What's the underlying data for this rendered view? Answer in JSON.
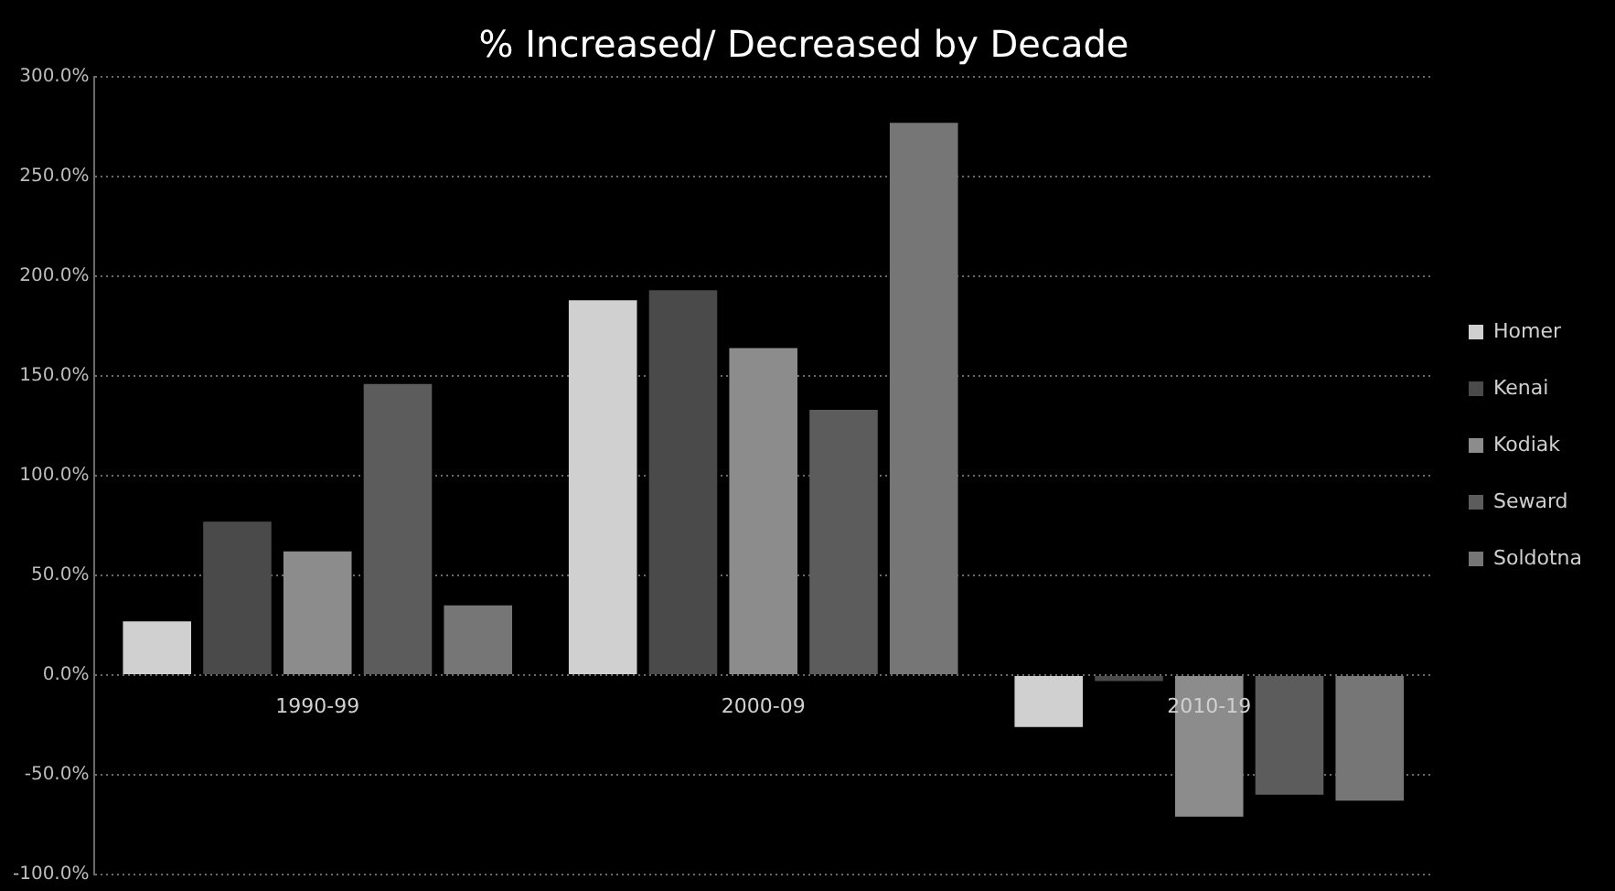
{
  "chart_data": {
    "type": "bar",
    "title": "% Increased/ Decreased by Decade",
    "categories": [
      "1990-99",
      "2000-09",
      "2010-19"
    ],
    "series": [
      {
        "name": "Homer",
        "color": "#d0d0d0",
        "values": [
          27,
          188,
          -26
        ]
      },
      {
        "name": "Kenai",
        "color": "#4a4a4a",
        "values": [
          77,
          193,
          -3
        ]
      },
      {
        "name": "Kodiak",
        "color": "#8c8c8c",
        "values": [
          62,
          164,
          -71
        ]
      },
      {
        "name": "Seward",
        "color": "#5c5c5c",
        "values": [
          146,
          133,
          -60
        ]
      },
      {
        "name": "Soldotna",
        "color": "#767676",
        "values": [
          35,
          277,
          -63
        ]
      }
    ],
    "ylim": [
      -100,
      300
    ],
    "yticks": [
      {
        "value": -100,
        "label": "-100.0%"
      },
      {
        "value": -50,
        "label": "-50.0%"
      },
      {
        "value": 0,
        "label": "0.0%"
      },
      {
        "value": 50,
        "label": "50.0%"
      },
      {
        "value": 100,
        "label": "100.0%"
      },
      {
        "value": 150,
        "label": "150.0%"
      },
      {
        "value": 200,
        "label": "200.0%"
      },
      {
        "value": 250,
        "label": "250.0%"
      },
      {
        "value": 300,
        "label": "300.0%"
      }
    ],
    "grid": "y",
    "legend": "right"
  }
}
